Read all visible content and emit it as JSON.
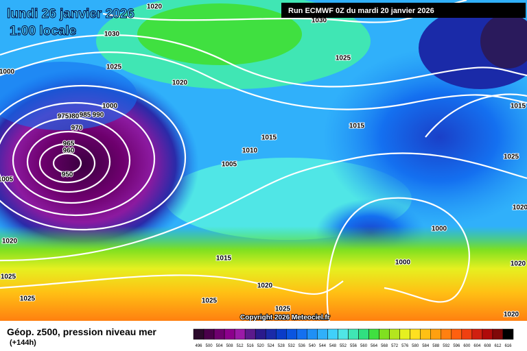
{
  "header": {
    "date": "lundi 26 janvier 2026",
    "time": "1:00 locale",
    "run": "Run ECMWF 0Z du mardi 20 janvier 2026"
  },
  "copyright": "Copyright 2026 Meteociel.fr",
  "legend": {
    "title": "Géop. z500, pression niveau mer",
    "lead": "(+144h)",
    "labels": [
      496,
      500,
      504,
      508,
      512,
      516,
      520,
      524,
      528,
      532,
      536,
      540,
      544,
      548,
      552,
      556,
      560,
      564,
      568,
      572,
      576,
      580,
      584,
      588,
      592,
      596,
      600,
      604,
      608,
      612,
      616
    ],
    "colors": [
      "#2b0a2b",
      "#4a004a",
      "#6e006e",
      "#8c008c",
      "#9b1aa8",
      "#5c1a8c",
      "#2a1a8c",
      "#1a2aa8",
      "#0a3cc8",
      "#0a55e0",
      "#1470f0",
      "#2090f5",
      "#30b0fa",
      "#40d0fa",
      "#50e6e6",
      "#40e6b4",
      "#30e080",
      "#40e040",
      "#80e020",
      "#b4e61e",
      "#e6f020",
      "#ffe020",
      "#ffc014",
      "#ffa010",
      "#ff8010",
      "#ff6010",
      "#f04010",
      "#d02010",
      "#b00a0a",
      "#800808",
      "#000000"
    ]
  },
  "isobars": [
    "1020",
    "1030",
    "1030",
    "1025",
    "1025",
    "1020",
    "1000",
    "1000",
    "990",
    "985",
    "980",
    "975",
    "970",
    "965",
    "960",
    "950",
    "1015",
    "1015",
    "1010",
    "1005",
    "1015",
    "1025",
    "1000",
    "1000",
    "1020",
    "1015",
    "1020",
    "1025",
    "1025",
    "1025",
    "1025",
    "1020",
    "1020",
    "1020",
    "1005"
  ]
}
